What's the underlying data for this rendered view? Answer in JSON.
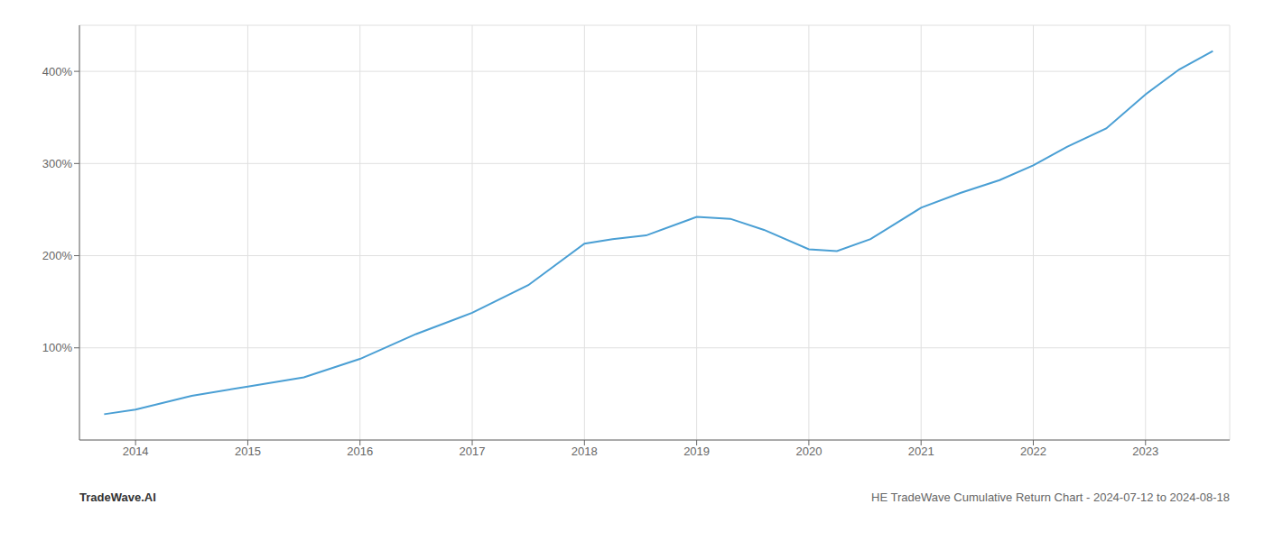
{
  "chart_data": {
    "type": "line",
    "title": "HE TradeWave Cumulative Return Chart - 2024-07-12 to 2024-08-18",
    "annotations": [
      "TradeWave.AI"
    ],
    "x": [
      2013.72,
      2014.0,
      2014.5,
      2015.0,
      2015.5,
      2016.0,
      2016.5,
      2017.0,
      2017.5,
      2018.0,
      2018.25,
      2018.55,
      2019.0,
      2019.3,
      2019.6,
      2020.0,
      2020.25,
      2020.55,
      2021.0,
      2021.35,
      2021.7,
      2022.0,
      2022.3,
      2022.65,
      2023.0,
      2023.3,
      2023.6
    ],
    "values": [
      28,
      33,
      48,
      58,
      68,
      88,
      115,
      138,
      168,
      213,
      218,
      222,
      242,
      240,
      228,
      207,
      205,
      218,
      252,
      268,
      282,
      298,
      318,
      338,
      375,
      402,
      422
    ],
    "color": "#4a9fd4",
    "xlim": [
      2013.5,
      2023.75
    ],
    "xticks": [
      2014,
      2015,
      2016,
      2017,
      2018,
      2019,
      2020,
      2021,
      2022,
      2023
    ],
    "ylim": [
      0,
      450
    ],
    "yticks": [
      {
        "value": 100,
        "label": "100%"
      },
      {
        "value": 200,
        "label": "200%"
      },
      {
        "value": 300,
        "label": "300%"
      },
      {
        "value": 400,
        "label": "400%"
      }
    ],
    "grid": true
  }
}
